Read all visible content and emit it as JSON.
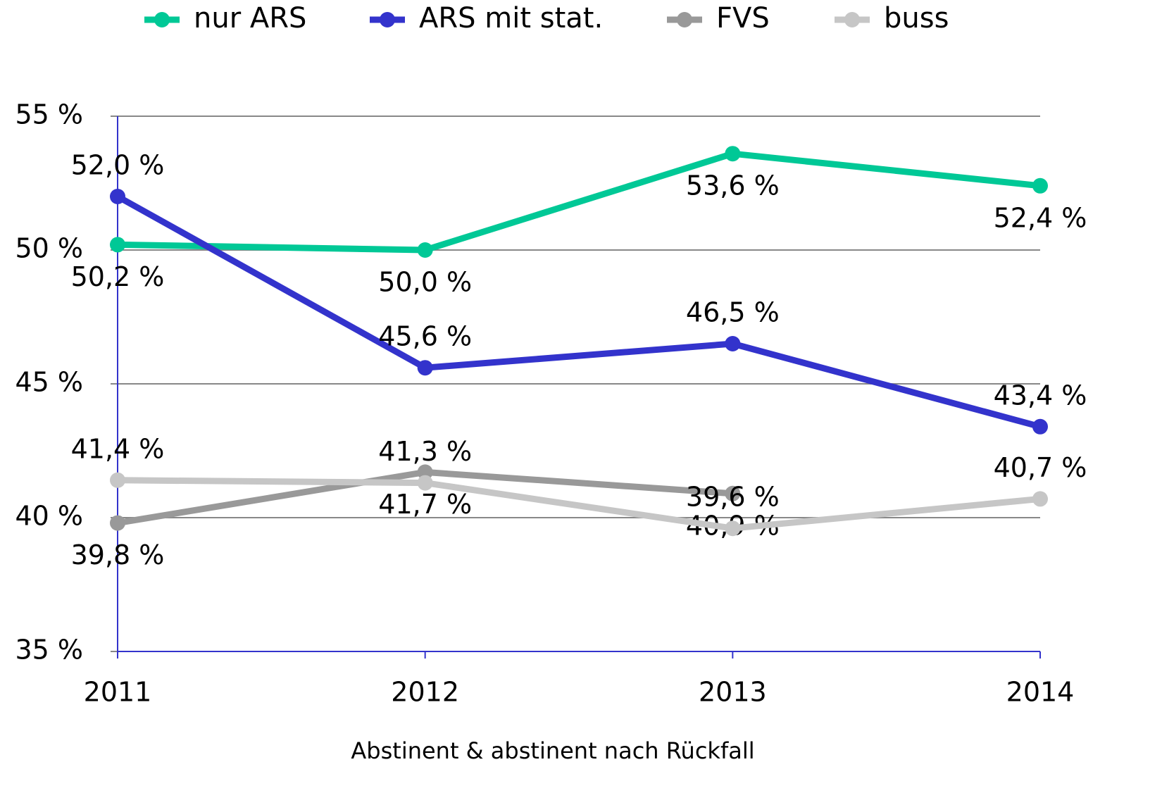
{
  "chart_data": {
    "type": "line",
    "x_axis_label": "Abstinent & abstinent nach Rückfall",
    "categories": [
      "2011",
      "2012",
      "2013",
      "2014"
    ],
    "series": [
      {
        "name": "nur ARS",
        "color": "#00c896",
        "values": [
          50.2,
          50.0,
          53.6,
          52.4
        ],
        "value_labels": [
          "50,2 %",
          "50,0 %",
          "53,6 %",
          "52,4 %"
        ]
      },
      {
        "name": "ARS mit stat.",
        "color": "#3333cc",
        "values": [
          52.0,
          45.6,
          46.5,
          43.4
        ],
        "value_labels": [
          "52,0 %",
          "45,6 %",
          "46,5 %",
          "43,4 %"
        ]
      },
      {
        "name": "FVS",
        "color": "#999999",
        "values": [
          39.8,
          41.7,
          40.9,
          null
        ],
        "value_labels": [
          "39,8 %",
          "41,7 %",
          "40,9 %",
          null
        ]
      },
      {
        "name": "buss",
        "color": "#c6c6c6",
        "values": [
          41.4,
          41.3,
          39.6,
          40.7
        ],
        "value_labels": [
          "41,4 %",
          "41,3 %",
          "39,6 %",
          "40,7 %"
        ]
      }
    ],
    "ylim": [
      35,
      55
    ],
    "yticks": [
      {
        "value": 35,
        "label": "35 %"
      },
      {
        "value": 40,
        "label": "40 %"
      },
      {
        "value": 45,
        "label": "45 %"
      },
      {
        "value": 50,
        "label": "50 %"
      },
      {
        "value": 55,
        "label": "55 %"
      }
    ],
    "grid": true,
    "legend": "top"
  }
}
